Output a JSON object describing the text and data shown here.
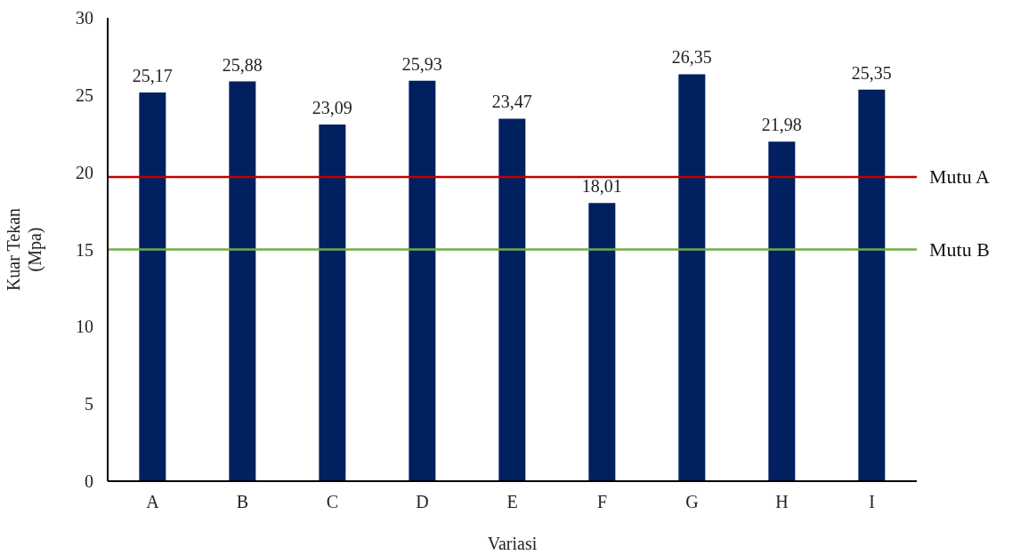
{
  "chart_data": {
    "type": "bar",
    "xlabel": "Variasi",
    "ylabel": "Kuar Tekan (Mpa)",
    "categories": [
      "A",
      "B",
      "C",
      "D",
      "E",
      "F",
      "G",
      "H",
      "I"
    ],
    "values": [
      25.17,
      25.88,
      23.09,
      25.93,
      23.47,
      18.01,
      26.35,
      21.98,
      25.35
    ],
    "value_labels": [
      "25,17",
      "25,88",
      "23,09",
      "25,93",
      "23,47",
      "18,01",
      "26,35",
      "21,98",
      "25,35"
    ],
    "color": "#002060",
    "ylim": [
      0,
      30
    ],
    "yticks": [
      0,
      5,
      10,
      15,
      20,
      25,
      30
    ],
    "ref_lines": [
      {
        "axis": "y",
        "value": 19.7,
        "label": "Mutu A",
        "color": "#c00000"
      },
      {
        "axis": "y",
        "value": 15,
        "label": "Mutu B",
        "color": "#70ad47"
      }
    ],
    "grid": false,
    "legend": false
  }
}
